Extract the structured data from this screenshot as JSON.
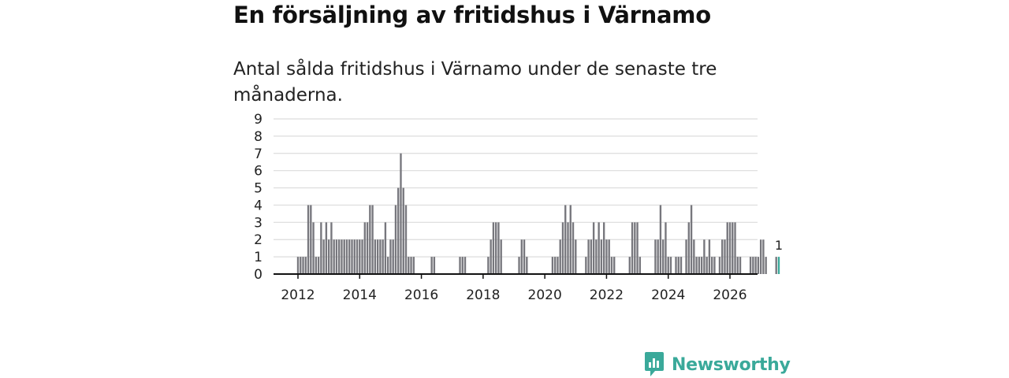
{
  "header": {
    "title": "En försäljning av fritidshus i Värnamo",
    "subtitle": "Antal sålda fritidshus i Värnamo under de senaste tre månaderna."
  },
  "brand": {
    "name": "Newsworthy",
    "color": "#3aa99a",
    "icon": "newsworthy-logo-icon"
  },
  "chart_data": {
    "type": "bar",
    "start": "2012-01",
    "x_ticks": [
      "2012",
      "2014",
      "2016",
      "2018",
      "2020",
      "2022",
      "2024",
      "2026"
    ],
    "y_ticks": [
      0,
      1,
      2,
      3,
      4,
      5,
      6,
      7,
      8,
      9
    ],
    "ylim": [
      0,
      9
    ],
    "bar_color": "#77777d",
    "highlight_color": "#3aa99a",
    "highlight_label": "1",
    "grid": true,
    "values": [
      1,
      1,
      1,
      1,
      4,
      4,
      3,
      1,
      1,
      3,
      2,
      3,
      2,
      3,
      2,
      2,
      2,
      2,
      2,
      2,
      2,
      2,
      2,
      2,
      2,
      2,
      3,
      3,
      4,
      4,
      2,
      2,
      2,
      2,
      3,
      1,
      2,
      2,
      4,
      5,
      7,
      5,
      4,
      1,
      1,
      1,
      0,
      0,
      0,
      0,
      0,
      0,
      1,
      1,
      0,
      0,
      0,
      0,
      0,
      0,
      0,
      0,
      0,
      1,
      1,
      1,
      0,
      0,
      0,
      0,
      0,
      0,
      0,
      0,
      1,
      2,
      3,
      3,
      3,
      2,
      0,
      0,
      0,
      0,
      0,
      0,
      1,
      2,
      2,
      1,
      0,
      0,
      0,
      0,
      0,
      0,
      0,
      0,
      0,
      1,
      1,
      1,
      2,
      3,
      4,
      3,
      4,
      3,
      2,
      0,
      0,
      0,
      1,
      2,
      2,
      3,
      2,
      3,
      2,
      3,
      2,
      2,
      1,
      1,
      0,
      0,
      0,
      0,
      0,
      1,
      3,
      3,
      3,
      1,
      0,
      0,
      0,
      0,
      0,
      2,
      2,
      4,
      2,
      3,
      1,
      1,
      0,
      1,
      1,
      1,
      0,
      2,
      3,
      4,
      2,
      1,
      1,
      1,
      2,
      1,
      2,
      1,
      1,
      0,
      1,
      2,
      2,
      3,
      3,
      3,
      3,
      1,
      1,
      0,
      0,
      0,
      1,
      1,
      1,
      1,
      2,
      2,
      1,
      0,
      0,
      0,
      1,
      1
    ]
  }
}
